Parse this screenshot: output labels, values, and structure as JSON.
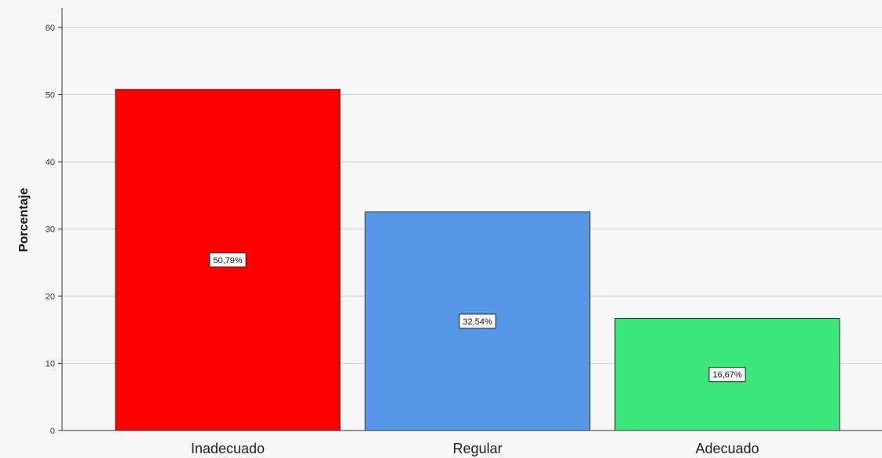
{
  "chart_data": {
    "type": "bar",
    "title": "",
    "xlabel": "",
    "ylabel": "Porcentaje",
    "categories": [
      "Inadecuado",
      "Regular",
      "Adecuado"
    ],
    "values": [
      50.79,
      32.54,
      16.67
    ],
    "data_labels": [
      "50,79%",
      "32,54%",
      "16,67%"
    ],
    "colors": [
      "#ff0000",
      "#5596e6",
      "#3de67a"
    ],
    "yticks": [
      0,
      10,
      20,
      30,
      40,
      50,
      60
    ],
    "ylim": [
      0,
      62
    ],
    "grid": true,
    "legend": "none"
  }
}
